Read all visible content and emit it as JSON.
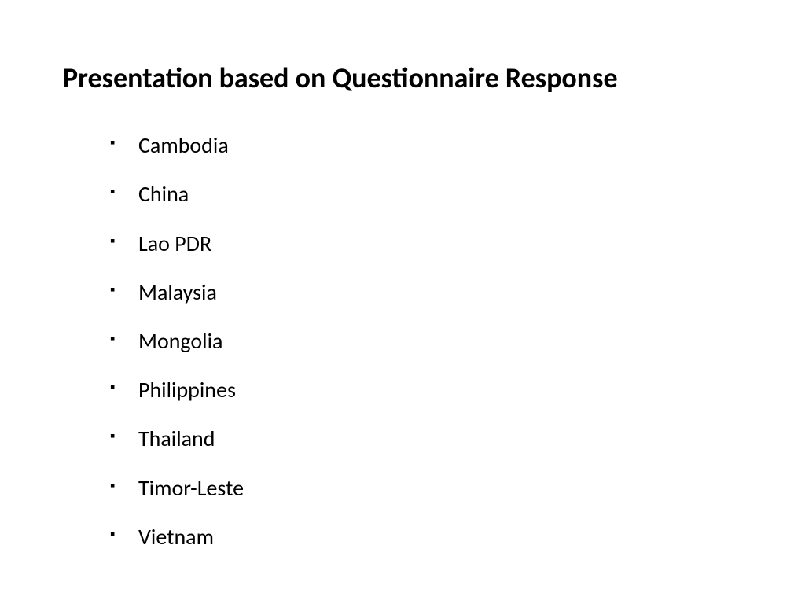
{
  "slide": {
    "title": "Presentation based on Questionnaire Response",
    "title_fontsize": 36,
    "title_fontweight": 700,
    "title_color": "#000000",
    "background_color": "#ffffff",
    "bullet_marker": "square",
    "bullet_color": "#000000",
    "item_fontsize": 28,
    "item_color": "#000000",
    "items": [
      "Cambodia",
      "China",
      "Lao PDR",
      "Malaysia",
      "Mongolia",
      "Philippines",
      "Thailand",
      "Timor-Leste",
      "Vietnam"
    ]
  }
}
